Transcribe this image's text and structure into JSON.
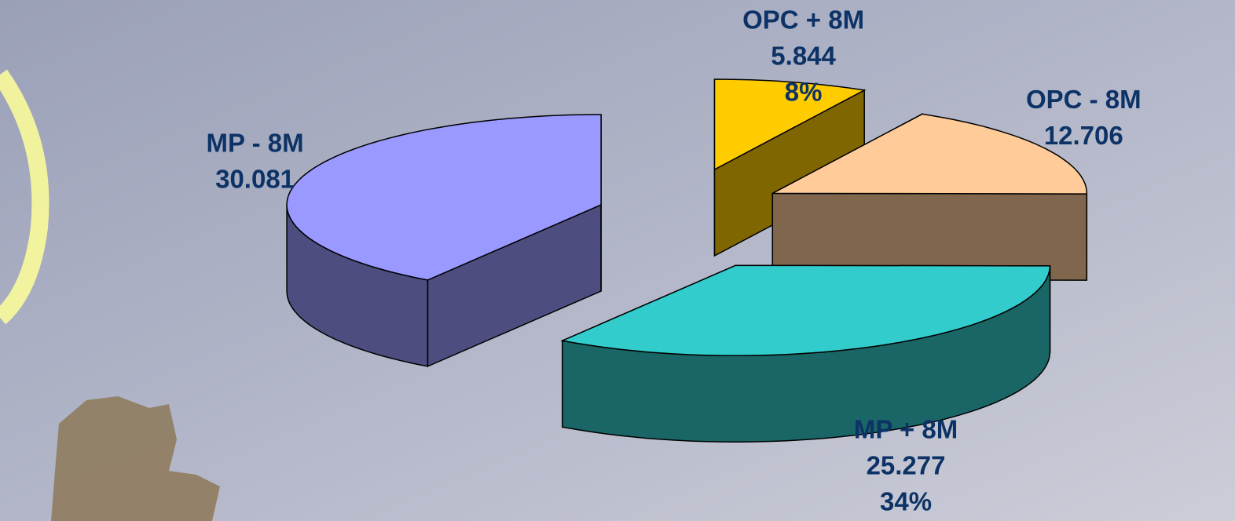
{
  "chart_data": {
    "type": "pie",
    "categories": [
      "OPC + 8M",
      "OPC - 8M",
      "MP + 8M",
      "MP - 8M"
    ],
    "values": [
      5.844,
      12.706,
      25.277,
      30.081
    ],
    "percent_labels": [
      "8%",
      null,
      "34%",
      null
    ],
    "colors": [
      "#ffcc00",
      "#ffcc99",
      "#33cccc",
      "#9999ff"
    ]
  }
}
